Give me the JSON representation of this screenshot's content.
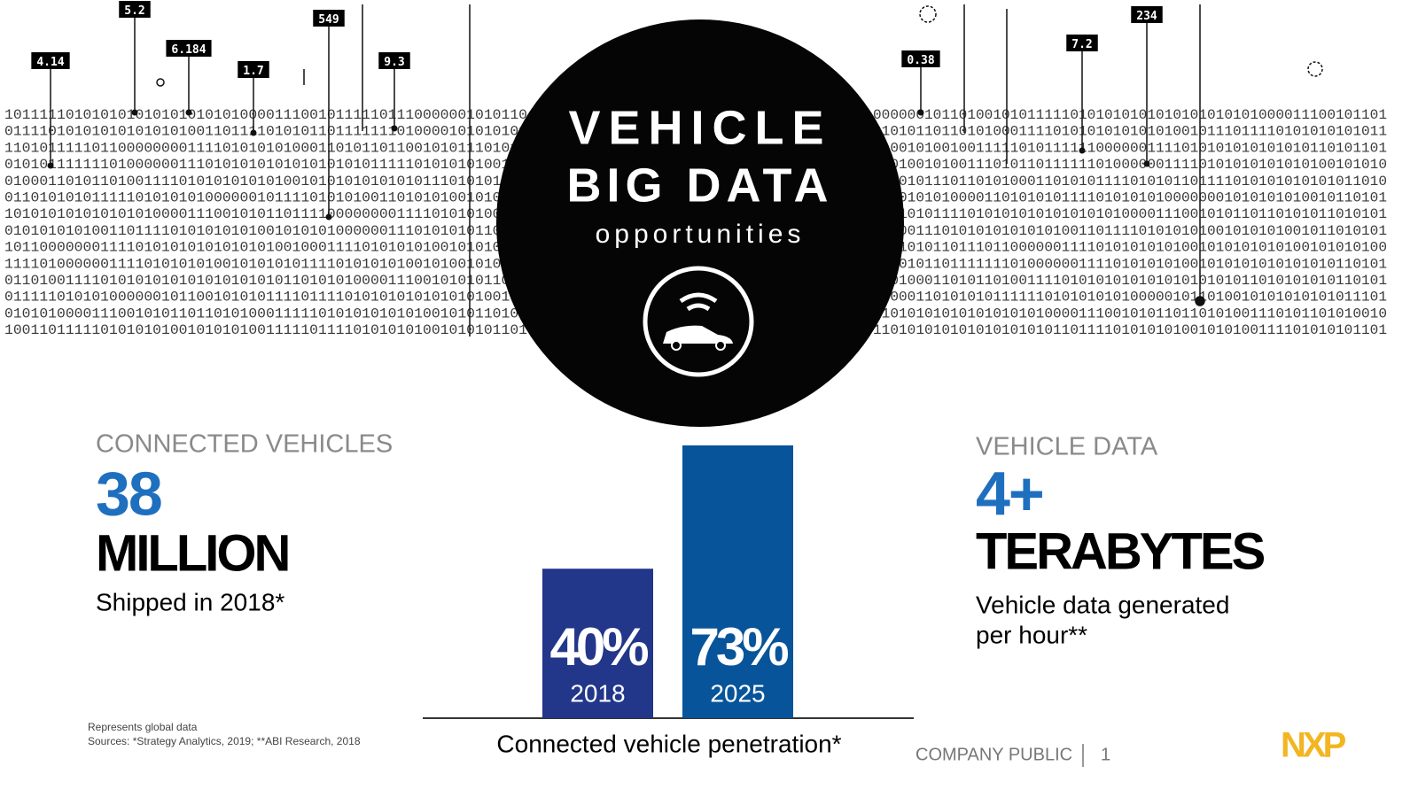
{
  "sphere": {
    "line1": "VEHICLE",
    "line2": "BIG DATA",
    "line3": "opportunities"
  },
  "callouts": [
    "4.14",
    "5.2",
    "6.184",
    "1.7",
    "549",
    "9.3",
    "0.38",
    "7.2",
    "234"
  ],
  "binary_left": [
    "101111101010101010101010101000011100101111101110000001010110",
    "011110101010101010101001101111010101101111111010000101010101",
    "110101111101100000000111101010101000110101101100101011101011",
    "010101111111010000001110101010101010101010111110101010100101",
    "010001101011010011110101010101010010101010101010111010101101",
    "011010101011111010101010000001011110101010011010101001010100",
    "101010101010101010000111001010110111100000000111101010100101",
    "010101010100110111101010101010010101010000001110101010110101",
    "101100000001111010101010101010100100011110101010100101010011",
    "111101000000111101010101001010101011110101010100101001010110",
    "011010011110101010101010101010101101010100001110010101011010",
    "011111010101000000101100101010111101111010101010101010100101",
    "010101000011100101011011010100011111010101010101001010110101",
    "100110111110101010100101010100111110111101010101001010101101"
  ],
  "binary_right": [
    "000000101101001010111110101010101010101010101000011100101101",
    "010101101101010001111010101010101010010111011110101010101011",
    "010010100100111110101111110000001111010101010101010110101101",
    "010100101001110101101111110100000011110101010101010100101010",
    "101010111011010100011010101111010101101111010101010101011010",
    "011010101000011010101011110101010100000001010101010010110101",
    "010101011110101010101010101010000111001010110110101011010101",
    "100001110101010101010100110111101010101001010101001011010101",
    "111101011011101100000011110101010101001010101010100101010100",
    "111010110111111101000000111101010101001010101010101010110101",
    "010100011010110100111101010101010101010101011010101010110101",
    "100001101010101111110101010101000001011010010101010101011101",
    "110101010101010101010000111001010110110101001110101101010010",
    "110101010101010101010110111101010101001010100111101010101101"
  ],
  "left_stat": {
    "heading": "CONNECTED VEHICLES",
    "number": "38",
    "unit": "MILLION",
    "note": "Shipped in 2018*"
  },
  "right_stat": {
    "heading": "VEHICLE DATA",
    "number": "4+",
    "unit": "TERABYTES",
    "note_line1": "Vehicle data generated",
    "note_line2": "per hour**"
  },
  "footnotes": {
    "line1": "Represents global data",
    "line2": "Sources:  *Strategy Analytics, 2019; **ABI Research, 2018"
  },
  "footer": {
    "classification": "COMPANY PUBLIC",
    "page": "1",
    "logo": "NXP"
  },
  "chart_data": {
    "type": "bar",
    "title": "Connected vehicle penetration*",
    "categories": [
      "2018",
      "2025"
    ],
    "values": [
      40,
      73
    ],
    "value_labels": [
      "40%",
      "73%"
    ],
    "colors": [
      "#22368a",
      "#07549a"
    ],
    "ylim": [
      0,
      100
    ]
  }
}
